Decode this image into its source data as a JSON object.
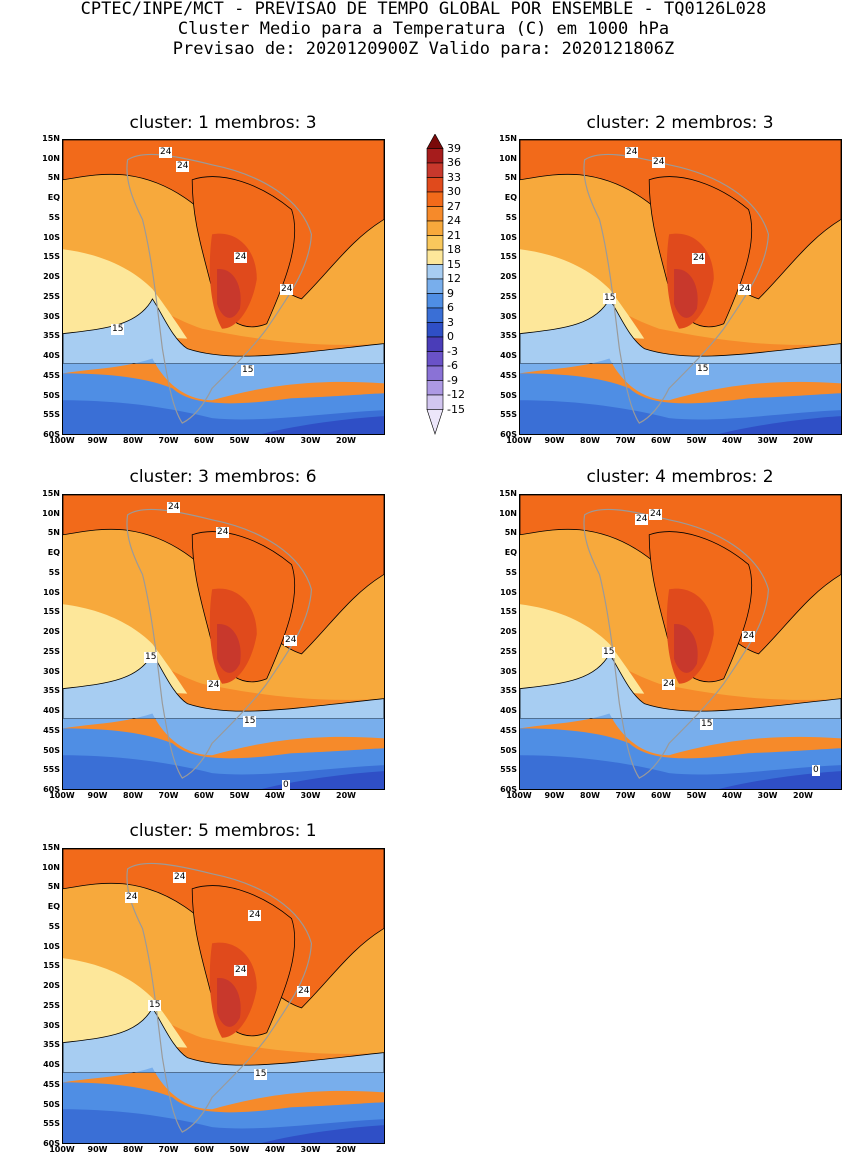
{
  "header": {
    "line1": "CPTEC/INPE/MCT - PREVISAO DE TEMPO GLOBAL POR ENSEMBLE - TQ0126L028",
    "line2": "Cluster Medio para a Temperatura (C) em 1000 hPa",
    "line3": "Previsao de: 2020120900Z   Valido para: 2020121806Z"
  },
  "lat_labels": [
    "15N",
    "10N",
    "5N",
    "EQ",
    "5S",
    "10S",
    "15S",
    "20S",
    "25S",
    "30S",
    "35S",
    "40S",
    "45S",
    "50S",
    "55S",
    "60S"
  ],
  "lon_labels": [
    "100W",
    "90W",
    "80W",
    "70W",
    "60W",
    "50W",
    "40W",
    "30W",
    "20W"
  ],
  "colorbar": {
    "labels": [
      "39",
      "36",
      "33",
      "30",
      "27",
      "24",
      "21",
      "18",
      "15",
      "12",
      "9",
      "6",
      "3",
      "0",
      "-3",
      "-6",
      "-9",
      "-12",
      "-15"
    ],
    "colors": [
      "#7a0a0a",
      "#a61c1c",
      "#c8382c",
      "#e04a1c",
      "#f26a1a",
      "#f68a2a",
      "#f7a93c",
      "#f9c85c",
      "#fde79a",
      "#a7cdf2",
      "#78aeec",
      "#4f8ee4",
      "#3a6fd6",
      "#2f4fc6",
      "#4a3db8",
      "#6a52c8",
      "#8a72d6",
      "#ad99e4",
      "#d2c6f0",
      "#ece6fa"
    ]
  },
  "panels": [
    {
      "title": "cluster: 1   membros: 3",
      "labels": [
        [
          "24",
          165,
          153
        ],
        [
          "24",
          182,
          167
        ],
        [
          "24",
          240,
          258
        ],
        [
          "24",
          286,
          290
        ],
        [
          "15",
          117,
          330
        ],
        [
          "15",
          247,
          371
        ]
      ]
    },
    {
      "title": "cluster: 2   membros: 3",
      "labels": [
        [
          "24",
          631,
          153
        ],
        [
          "24",
          658,
          163
        ],
        [
          "24",
          698,
          259
        ],
        [
          "24",
          744,
          290
        ],
        [
          "15",
          609,
          299
        ],
        [
          "15",
          702,
          370
        ]
      ]
    },
    {
      "title": "cluster: 3   membros: 6",
      "labels": [
        [
          "24",
          173,
          508
        ],
        [
          "24",
          222,
          533
        ],
        [
          "24",
          290,
          641
        ],
        [
          "15",
          150,
          658
        ],
        [
          "24",
          213,
          686
        ],
        [
          "15",
          249,
          722
        ],
        [
          "0",
          288,
          786
        ]
      ]
    },
    {
      "title": "cluster: 4   membros: 2",
      "labels": [
        [
          "24",
          641,
          520
        ],
        [
          "24",
          655,
          515
        ],
        [
          "24",
          748,
          637
        ],
        [
          "15",
          608,
          653
        ],
        [
          "24",
          668,
          685
        ],
        [
          "15",
          706,
          725
        ],
        [
          "0",
          818,
          771
        ]
      ]
    },
    {
      "title": "cluster: 5   membros: 1",
      "labels": [
        [
          "24",
          179,
          878
        ],
        [
          "24",
          131,
          898
        ],
        [
          "24",
          254,
          916
        ],
        [
          "24",
          240,
          971
        ],
        [
          "24",
          303,
          992
        ],
        [
          "15",
          154,
          1006
        ],
        [
          "15",
          260,
          1075
        ]
      ]
    }
  ]
}
